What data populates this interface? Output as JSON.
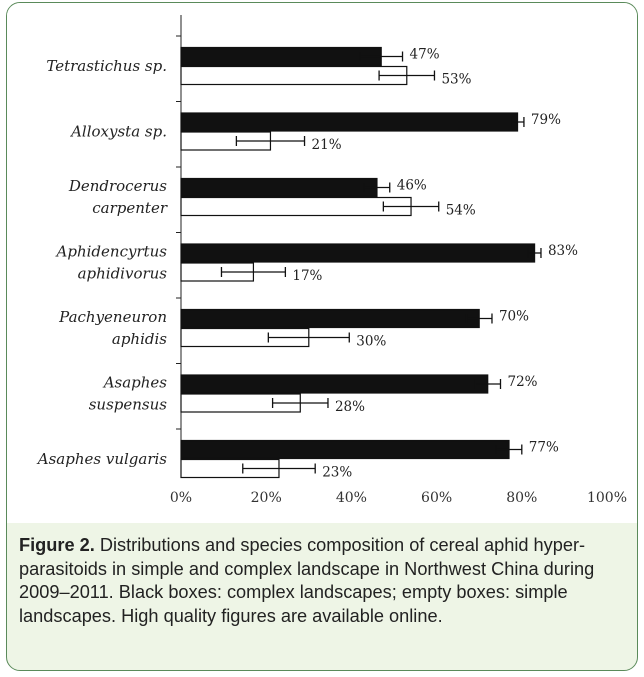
{
  "chart_data": {
    "type": "bar",
    "orientation": "horizontal",
    "categories": [
      [
        "Tetrastichus sp."
      ],
      [
        "Alloxysta sp."
      ],
      [
        "Dendrocerus",
        "carpenter"
      ],
      [
        "Aphidencyrtus",
        "aphidivorus"
      ],
      [
        "Pachyeneuron",
        "aphidis"
      ],
      [
        "Asaphes",
        "suspensus"
      ],
      [
        "Asaphes vulgaris"
      ]
    ],
    "series": [
      {
        "fill": "black",
        "values": [
          47,
          79,
          46,
          83,
          70,
          72,
          77
        ],
        "errors": [
          5,
          1.5,
          3,
          1.5,
          3,
          3,
          3
        ],
        "labels": [
          "47%",
          "79%",
          "46%",
          "83%",
          "70%",
          "72%",
          "77%"
        ]
      },
      {
        "fill": "white",
        "values": [
          53,
          21,
          54,
          17,
          30,
          28,
          23
        ],
        "errors": [
          6.5,
          8,
          6.5,
          7.5,
          9.5,
          6.5,
          8.5
        ],
        "labels": [
          "53%",
          "21%",
          "54%",
          "17%",
          "30%",
          "28%",
          "23%"
        ]
      }
    ],
    "xlim": [
      0,
      100
    ],
    "xticks": [
      "0%",
      "20%",
      "40%",
      "60%",
      "80%",
      "100%"
    ],
    "grid": false
  },
  "caption": {
    "label": "Figure 2.",
    "text": " Distributions and species composition of cereal aphid hyper-parasitoids in simple and complex landscape in Northwest China during 2009–2011. Black boxes: complex landscapes; empty boxes: simple landscapes. High quality figures are available online."
  },
  "colors": {
    "frame": "#5a8a5a",
    "caption_bg": "#eef5e6"
  }
}
